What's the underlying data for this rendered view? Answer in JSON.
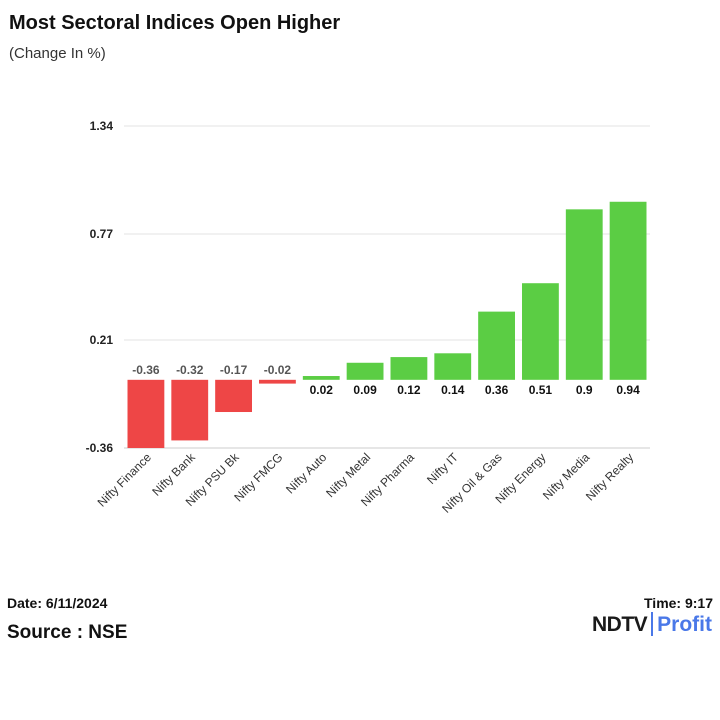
{
  "title": "Most Sectoral Indices Open Higher",
  "subtitle": "(Change In %)",
  "footer": {
    "date": "Date: 6/11/2024",
    "time": "Time: 9:17",
    "source": "Source : NSE"
  },
  "logo": {
    "brand": "NDTV",
    "product": "Profit"
  },
  "colors": {
    "positive": "#5bcd44",
    "negative": "#ee4646",
    "grid": "#e3e3e3",
    "axis": "#cccccc"
  },
  "chart_data": {
    "type": "bar",
    "categories": [
      "Nifty Finance",
      "Nifty Bank",
      "Nifty PSU Bk",
      "Nifty FMCG",
      "Nifty Auto",
      "Nifty Metal",
      "Nifty Pharma",
      "Nifty IT",
      "Nifty Oil & Gas",
      "Nifty Energy",
      "Nifty Media",
      "Nifty Realty"
    ],
    "values": [
      -0.36,
      -0.32,
      -0.17,
      -0.02,
      0.02,
      0.09,
      0.12,
      0.14,
      0.36,
      0.51,
      0.9,
      0.94
    ],
    "value_labels": [
      "-0.36",
      "-0.32",
      "-0.17",
      "-0.02",
      "0.02",
      "0.09",
      "0.12",
      "0.14",
      "0.36",
      "0.51",
      "0.9",
      "0.94"
    ],
    "yticks": [
      1.34,
      0.77,
      0.21,
      -0.36
    ],
    "ytick_labels": [
      "1.34",
      "0.77",
      "0.21",
      "-0.36"
    ],
    "ylim": [
      -0.36,
      1.34
    ],
    "grid": true,
    "legend": "none"
  }
}
